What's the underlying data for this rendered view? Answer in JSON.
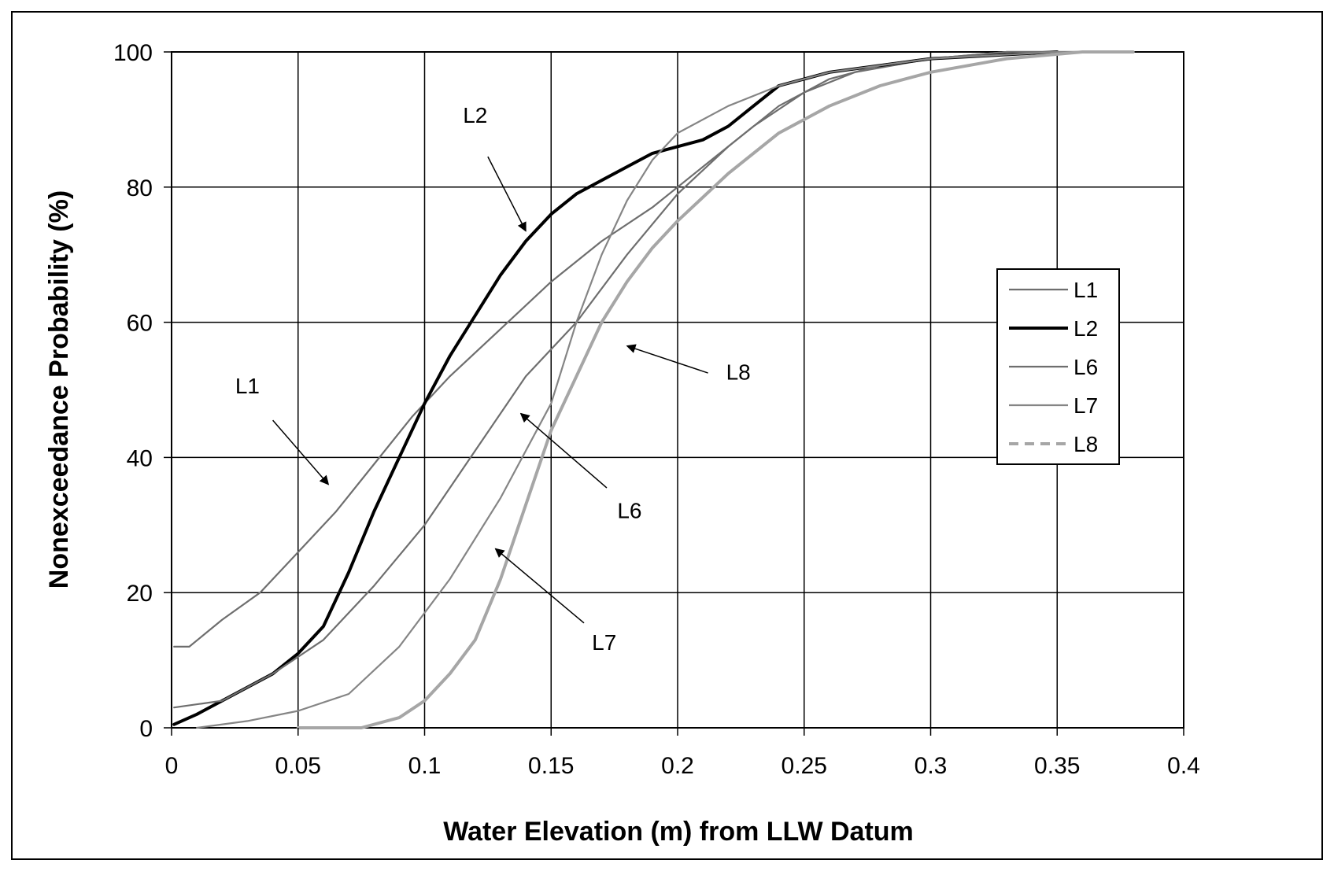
{
  "chart_data": {
    "type": "line",
    "title": "",
    "xlabel": "Water Elevation (m) from LLW Datum",
    "ylabel": "Nonexceedance Probability (%)",
    "xlim": [
      0,
      0.4
    ],
    "ylim": [
      0,
      100
    ],
    "x_ticks": [
      "0",
      "0.05",
      "0.1",
      "0.15",
      "0.2",
      "0.25",
      "0.3",
      "0.35",
      "0.4"
    ],
    "y_ticks": [
      "0",
      "20",
      "40",
      "60",
      "80",
      "100"
    ],
    "grid": true,
    "legend_position": "right",
    "series": [
      {
        "name": "L1",
        "color": "#6e6e6e",
        "dash": "solid",
        "width": "thin",
        "points": [
          [
            0.001,
            12
          ],
          [
            0.007,
            12
          ],
          [
            0.02,
            16
          ],
          [
            0.035,
            20
          ],
          [
            0.05,
            26
          ],
          [
            0.065,
            32
          ],
          [
            0.08,
            39
          ],
          [
            0.095,
            46
          ],
          [
            0.11,
            52
          ],
          [
            0.13,
            59
          ],
          [
            0.15,
            66
          ],
          [
            0.17,
            72
          ],
          [
            0.19,
            77
          ],
          [
            0.21,
            83
          ],
          [
            0.23,
            89
          ],
          [
            0.25,
            94
          ],
          [
            0.27,
            97
          ],
          [
            0.3,
            99
          ],
          [
            0.33,
            100
          ],
          [
            0.35,
            100
          ]
        ]
      },
      {
        "name": "L2",
        "color": "#000000",
        "dash": "solid",
        "width": "thick",
        "points": [
          [
            0.001,
            0.5
          ],
          [
            0.01,
            2
          ],
          [
            0.02,
            4
          ],
          [
            0.03,
            6
          ],
          [
            0.04,
            8
          ],
          [
            0.05,
            11
          ],
          [
            0.06,
            15
          ],
          [
            0.07,
            23
          ],
          [
            0.08,
            32
          ],
          [
            0.09,
            40
          ],
          [
            0.1,
            48
          ],
          [
            0.11,
            55
          ],
          [
            0.12,
            61
          ],
          [
            0.13,
            67
          ],
          [
            0.14,
            72
          ],
          [
            0.15,
            76
          ],
          [
            0.16,
            79
          ],
          [
            0.17,
            81
          ],
          [
            0.18,
            83
          ],
          [
            0.19,
            85
          ],
          [
            0.2,
            86
          ],
          [
            0.21,
            87
          ],
          [
            0.22,
            89
          ],
          [
            0.23,
            92
          ],
          [
            0.24,
            95
          ],
          [
            0.25,
            96
          ],
          [
            0.26,
            97
          ],
          [
            0.28,
            98
          ],
          [
            0.3,
            99
          ],
          [
            0.35,
            100
          ]
        ]
      },
      {
        "name": "L6",
        "color": "#6e6e6e",
        "dash": "solid",
        "width": "thin",
        "points": [
          [
            0.001,
            3
          ],
          [
            0.02,
            4
          ],
          [
            0.04,
            8
          ],
          [
            0.06,
            13
          ],
          [
            0.08,
            21
          ],
          [
            0.1,
            30
          ],
          [
            0.12,
            41
          ],
          [
            0.14,
            52
          ],
          [
            0.16,
            60
          ],
          [
            0.18,
            70
          ],
          [
            0.2,
            79
          ],
          [
            0.22,
            86
          ],
          [
            0.24,
            92
          ],
          [
            0.26,
            96
          ],
          [
            0.28,
            98
          ],
          [
            0.3,
            99
          ],
          [
            0.33,
            100
          ],
          [
            0.36,
            100
          ]
        ]
      },
      {
        "name": "L7",
        "color": "#858585",
        "dash": "solid",
        "width": "thin",
        "points": [
          [
            0.01,
            0
          ],
          [
            0.03,
            1
          ],
          [
            0.05,
            2.5
          ],
          [
            0.07,
            5
          ],
          [
            0.09,
            12
          ],
          [
            0.11,
            22
          ],
          [
            0.13,
            34
          ],
          [
            0.15,
            48
          ],
          [
            0.16,
            60
          ],
          [
            0.17,
            70
          ],
          [
            0.18,
            78
          ],
          [
            0.19,
            84
          ],
          [
            0.2,
            88
          ],
          [
            0.22,
            92
          ],
          [
            0.24,
            95
          ],
          [
            0.26,
            97
          ],
          [
            0.28,
            98
          ],
          [
            0.3,
            99
          ],
          [
            0.35,
            100
          ],
          [
            0.37,
            100
          ]
        ]
      },
      {
        "name": "L8",
        "color": "#a6a6a6",
        "dash": "dashed",
        "width": "thick",
        "points": [
          [
            0.05,
            0
          ],
          [
            0.075,
            0
          ],
          [
            0.09,
            1.5
          ],
          [
            0.1,
            4
          ],
          [
            0.11,
            8
          ],
          [
            0.12,
            13
          ],
          [
            0.13,
            22
          ],
          [
            0.14,
            33
          ],
          [
            0.15,
            44
          ],
          [
            0.16,
            52
          ],
          [
            0.17,
            60
          ],
          [
            0.18,
            66
          ],
          [
            0.19,
            71
          ],
          [
            0.2,
            75
          ],
          [
            0.22,
            82
          ],
          [
            0.24,
            88
          ],
          [
            0.26,
            92
          ],
          [
            0.28,
            95
          ],
          [
            0.3,
            97
          ],
          [
            0.33,
            99
          ],
          [
            0.36,
            100
          ],
          [
            0.38,
            100
          ]
        ]
      }
    ],
    "annotations": [
      {
        "text": "L2",
        "series": "L2",
        "label_at": [
          0.12,
          89.5
        ],
        "arrow_from": [
          0.125,
          84.5
        ],
        "arrow_to": [
          0.14,
          73.5
        ]
      },
      {
        "text": "L1",
        "series": "L1",
        "label_at": [
          0.03,
          49.5
        ],
        "arrow_from": [
          0.04,
          45.5
        ],
        "arrow_to": [
          0.062,
          36
        ]
      },
      {
        "text": "L8",
        "series": "L8",
        "label_at": [
          0.224,
          51.5
        ],
        "arrow_from": [
          0.212,
          52.5
        ],
        "arrow_to": [
          0.18,
          56.5
        ]
      },
      {
        "text": "L6",
        "series": "L6",
        "label_at": [
          0.181,
          31
        ],
        "arrow_from": [
          0.172,
          35.5
        ],
        "arrow_to": [
          0.138,
          46.5
        ]
      },
      {
        "text": "L7",
        "series": "L7",
        "label_at": [
          0.171,
          11.5
        ],
        "arrow_from": [
          0.163,
          15.5
        ],
        "arrow_to": [
          0.128,
          26.5
        ]
      }
    ]
  }
}
